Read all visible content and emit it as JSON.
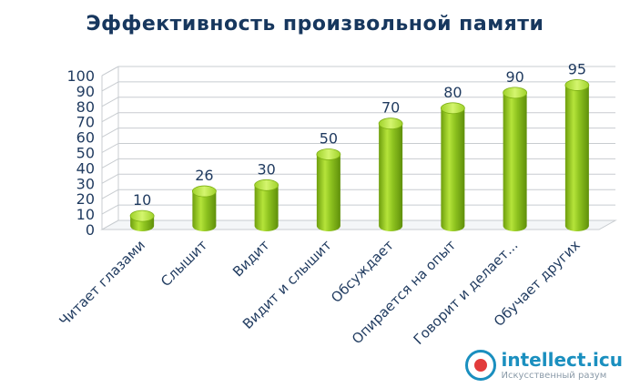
{
  "chart_data": {
    "type": "bar",
    "title": "Эффективность произвольной памяти",
    "categories": [
      "Читает глазами",
      "Слышит",
      "Видит",
      "Видит и слышит",
      "Обсуждает",
      "Опирается на опыт",
      "Говорит и делает...",
      "Обучает других"
    ],
    "values": [
      10,
      26,
      30,
      50,
      70,
      80,
      90,
      95
    ],
    "ylim": [
      0,
      100
    ],
    "yticks": [
      "0",
      "10",
      "20",
      "30",
      "40",
      "50",
      "60",
      "70",
      "80",
      "90",
      "100"
    ],
    "xlabel": "",
    "ylabel": "",
    "grid": true,
    "bar_color": "#8dc21f",
    "bar_highlight": "#c9f05a",
    "bar_shadow": "#5f8f0a",
    "text_color": "#1f3a5f"
  },
  "watermark": {
    "main": "intellect.icu",
    "sub": "Искусственный разум"
  }
}
